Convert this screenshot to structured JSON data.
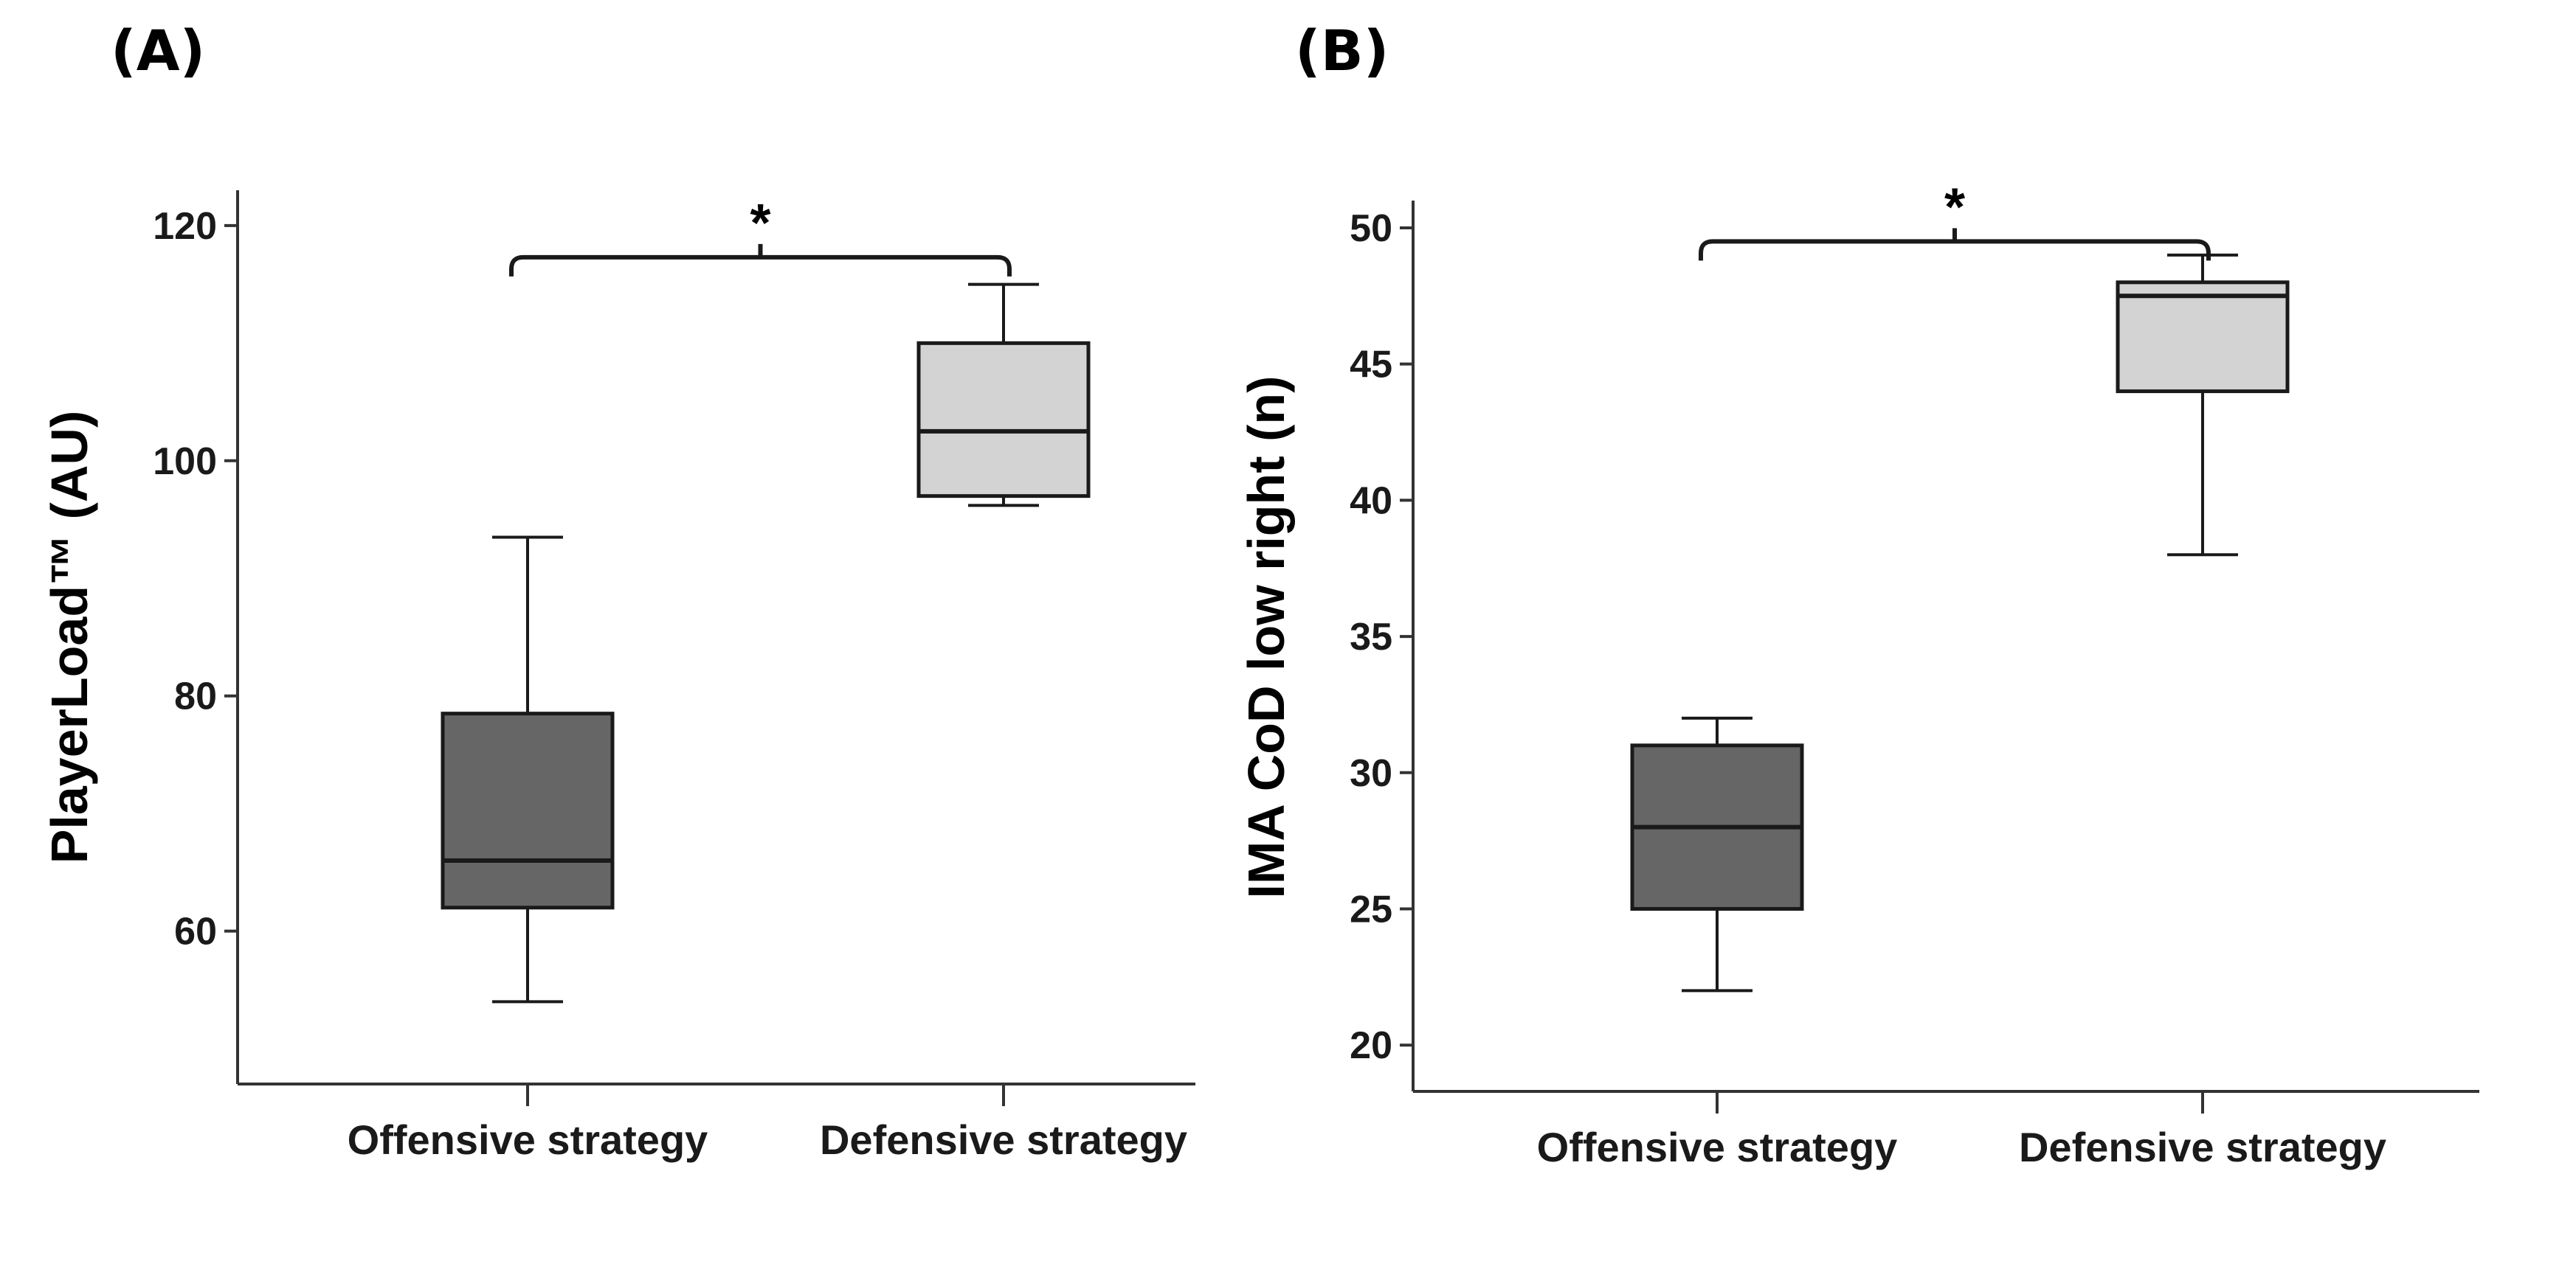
{
  "chart_data": [
    {
      "type": "box",
      "panel_label": "(A)",
      "title": "",
      "xlabel": "",
      "ylabel": "PlayerLoad™ (AU)",
      "ylim": [
        47,
        123
      ],
      "yticks": [
        60,
        80,
        100,
        120
      ],
      "categories": [
        "Offensive strategy",
        "Defensive strategy"
      ],
      "boxes": [
        {
          "name": "Offensive strategy",
          "whisker_low": 54,
          "q1": 62,
          "median": 66,
          "q3": 78.5,
          "whisker_high": 93.5,
          "color": "#666666"
        },
        {
          "name": "Defensive strategy",
          "whisker_low": 96.2,
          "q1": 97,
          "median": 102.5,
          "q3": 110,
          "whisker_high": 115,
          "color": "#d3d3d3"
        }
      ],
      "significance": {
        "label": "*",
        "between": [
          0,
          1
        ],
        "level": 117.3
      }
    },
    {
      "type": "box",
      "panel_label": "(B)",
      "title": "",
      "xlabel": "",
      "ylabel": "IMA CoD low right (n)",
      "ylim": [
        18.3,
        51
      ],
      "yticks": [
        20,
        25,
        30,
        35,
        40,
        45,
        50
      ],
      "categories": [
        "Offensive strategy",
        "Defensive strategy"
      ],
      "boxes": [
        {
          "name": "Offensive strategy",
          "whisker_low": 22,
          "q1": 25,
          "median": 28,
          "q3": 31,
          "whisker_high": 32,
          "color": "#666666"
        },
        {
          "name": "Defensive strategy",
          "whisker_low": 38,
          "q1": 44,
          "median": 47.5,
          "q3": 48,
          "whisker_high": 49,
          "color": "#d3d3d3"
        }
      ],
      "significance": {
        "label": "*",
        "between": [
          0,
          1
        ],
        "level": 49.5
      }
    }
  ]
}
